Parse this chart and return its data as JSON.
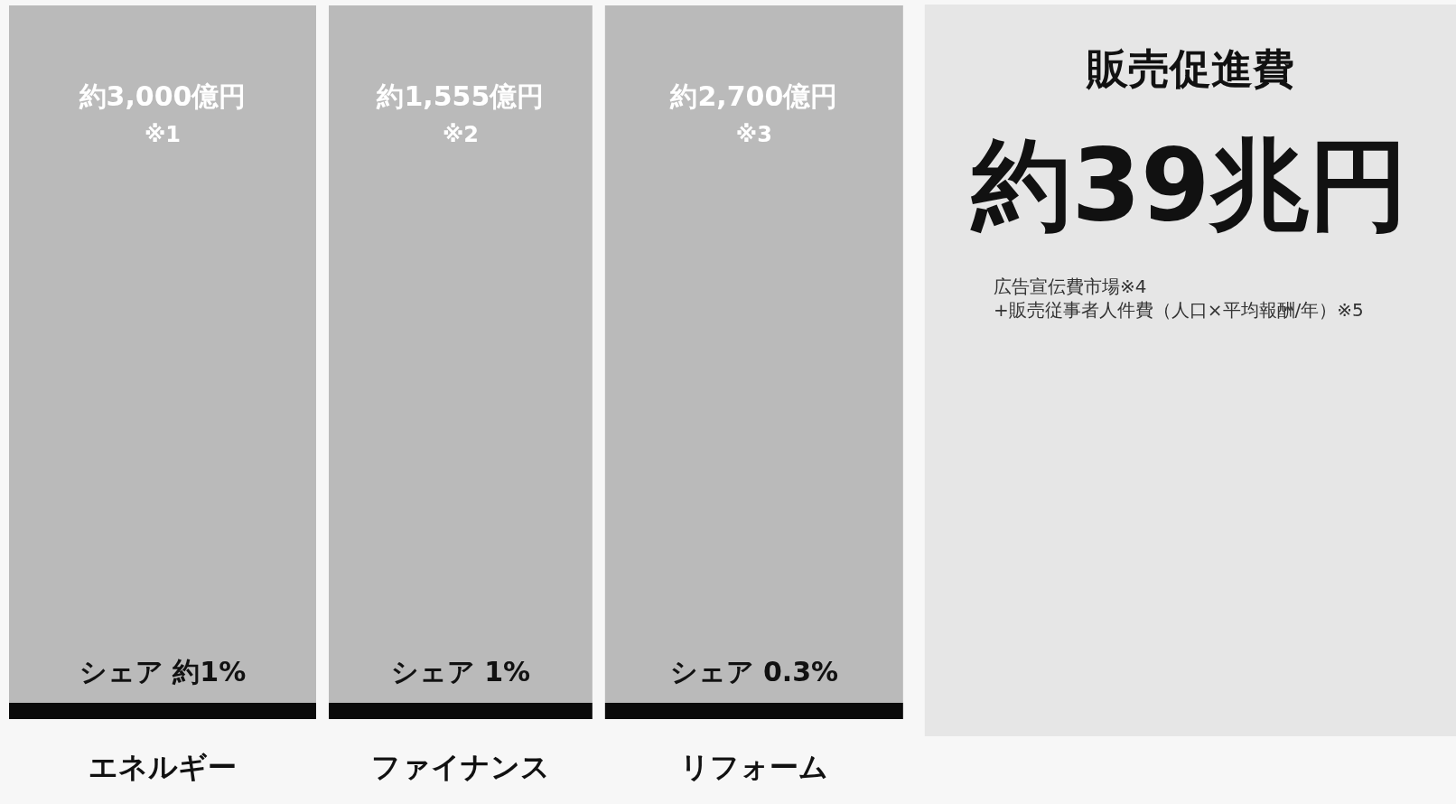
{
  "chart_data": {
    "type": "other",
    "title": "販売促進費",
    "categories": [
      "エネルギー",
      "ファイナンス",
      "リフォーム"
    ],
    "values": [
      3000,
      1555,
      2700
    ],
    "value_labels": [
      "約3,000億円",
      "約1,555億円",
      "約2,700億円"
    ],
    "colors": [
      "#bababa",
      "#bababa",
      "#bababa"
    ],
    "annotations": [
      "※1",
      "※2",
      "※3",
      "シェア 約1%",
      "シェア 1%",
      "シェア 0.3%",
      "約39兆円",
      "広告宣伝費市場※4",
      "+販売従事者人件費（人口×平均報酬/年）※5"
    ]
  }
}
